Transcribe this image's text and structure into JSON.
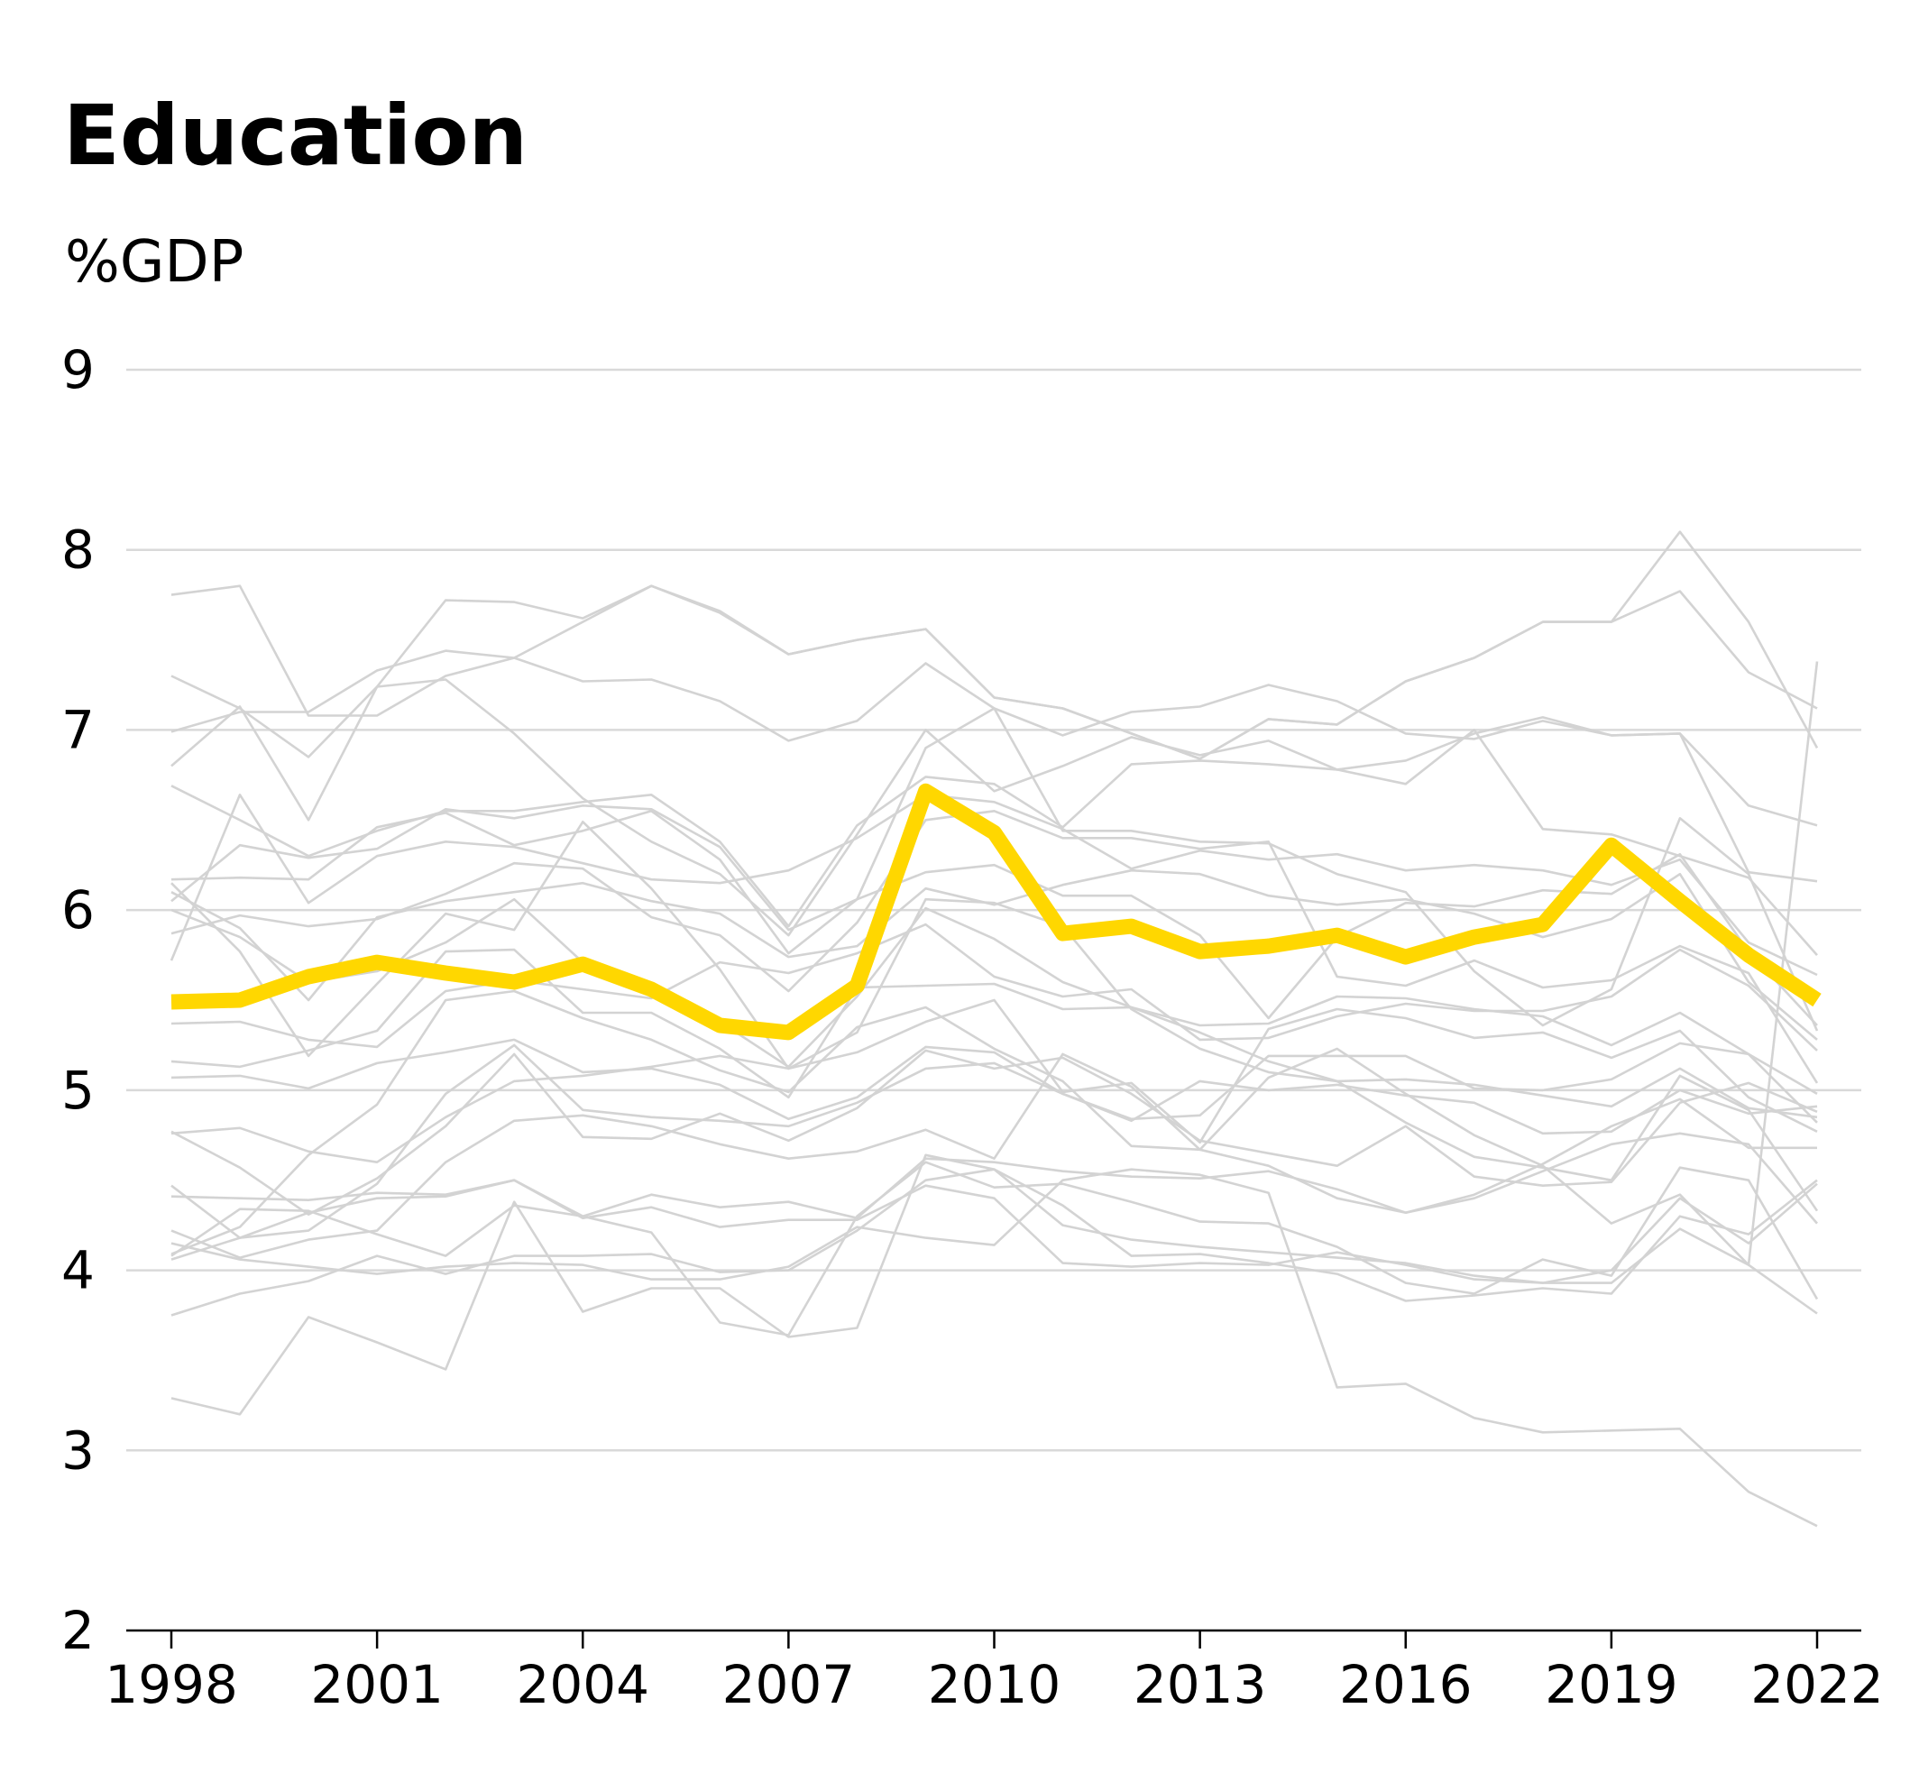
{
  "chart_data": {
    "type": "line",
    "title": "Education",
    "subtitle": "%GDP",
    "xlabel": "",
    "ylabel": "",
    "x": [
      1998,
      1999,
      2000,
      2001,
      2002,
      2003,
      2004,
      2005,
      2006,
      2007,
      2008,
      2009,
      2010,
      2011,
      2012,
      2013,
      2014,
      2015,
      2016,
      2017,
      2018,
      2019,
      2020,
      2021,
      2022
    ],
    "xticks": [
      "1998",
      "2001",
      "2004",
      "2007",
      "2010",
      "2013",
      "2016",
      "2019",
      "2022"
    ],
    "xtick_values": [
      1998,
      2001,
      2004,
      2007,
      2010,
      2013,
      2016,
      2019,
      2022
    ],
    "yticks": [
      "2",
      "3",
      "4",
      "5",
      "6",
      "7",
      "8",
      "9"
    ],
    "ylim": [
      2,
      9
    ],
    "xlim": [
      1998,
      2022
    ],
    "grid": true,
    "colors": {
      "highlight": "#FFD700",
      "background_lines": "#D3D3D3",
      "grid": "#D9D9D9",
      "axis": "#000000"
    },
    "highlight_series": {
      "values": [
        5.49,
        5.5,
        5.63,
        5.71,
        5.65,
        5.6,
        5.7,
        5.56,
        5.36,
        5.32,
        5.58,
        6.66,
        6.43,
        5.87,
        5.91,
        5.77,
        5.8,
        5.86,
        5.74,
        5.85,
        5.92,
        6.36,
        6.05,
        5.75,
        5.5
      ]
    },
    "background_series": [
      {
        "values": [
          7.75,
          7.8,
          7.08,
          7.08,
          7.3,
          7.4,
          7.6,
          7.8,
          7.66,
          7.42,
          7.5,
          7.56,
          7.18,
          7.12,
          6.98,
          6.84,
          7.06,
          7.03,
          7.27,
          7.4,
          7.6,
          7.6,
          7.77,
          7.32,
          7.12
        ]
      },
      {
        "values": [
          7.3,
          7.12,
          6.85,
          7.24,
          7.72,
          7.71,
          7.62,
          7.8,
          7.65,
          7.42,
          7.5,
          7.56,
          7.18,
          7.12,
          6.98,
          6.84,
          7.06,
          7.03,
          7.27,
          7.4,
          7.6,
          7.6,
          8.1,
          7.6,
          6.9
        ]
      },
      {
        "values": [
          6.99,
          7.1,
          7.1,
          7.33,
          7.44,
          7.4,
          7.27,
          7.28,
          7.16,
          6.94,
          7.05,
          7.37,
          7.12,
          6.97,
          7.1,
          7.13,
          7.25,
          7.16,
          6.98,
          6.95,
          7.05,
          6.97,
          6.98,
          6.58,
          6.47
        ]
      },
      {
        "values": [
          6.8,
          7.13,
          6.5,
          7.24,
          7.28,
          6.98,
          6.62,
          6.38,
          6.2,
          5.86,
          6.42,
          7.0,
          6.66,
          6.8,
          6.96,
          6.86,
          6.94,
          6.78,
          6.83,
          6.98,
          7.07,
          6.97,
          6.98,
          6.21,
          6.16
        ]
      },
      {
        "values": [
          6.69,
          6.5,
          6.3,
          6.44,
          6.55,
          6.55,
          6.6,
          6.64,
          6.38,
          5.91,
          6.47,
          6.74,
          6.7,
          6.46,
          6.81,
          6.83,
          6.81,
          6.78,
          6.7,
          7.0,
          6.45,
          6.42,
          6.3,
          6.18,
          5.75
        ]
      },
      {
        "values": [
          6.05,
          6.36,
          6.29,
          6.34,
          6.56,
          6.51,
          6.58,
          6.56,
          6.35,
          5.89,
          6.06,
          6.9,
          7.12,
          6.44,
          6.44,
          6.38,
          6.37,
          6.2,
          6.1,
          5.66,
          5.36,
          5.56,
          6.51,
          6.2,
          5.33
        ]
      },
      {
        "values": [
          5.72,
          6.64,
          6.04,
          6.3,
          6.38,
          6.35,
          6.26,
          6.17,
          6.15,
          6.22,
          6.4,
          6.64,
          6.6,
          6.45,
          6.23,
          6.33,
          6.28,
          6.31,
          6.22,
          6.25,
          6.22,
          6.14,
          6.28,
          5.82,
          5.64
        ]
      },
      {
        "values": [
          6.17,
          6.18,
          6.17,
          6.46,
          6.54,
          6.36,
          6.44,
          6.55,
          6.28,
          5.76,
          6.06,
          6.21,
          6.25,
          6.08,
          6.08,
          5.86,
          5.4,
          5.85,
          6.04,
          6.02,
          6.11,
          6.09,
          6.31,
          5.77,
          5.36
        ]
      },
      {
        "values": [
          6.1,
          5.9,
          5.5,
          5.96,
          6.05,
          6.1,
          6.15,
          6.05,
          5.98,
          5.74,
          5.8,
          6.12,
          6.03,
          6.14,
          6.22,
          6.2,
          6.08,
          6.03,
          6.06,
          5.98,
          5.85,
          5.95,
          6.2,
          5.6,
          5.28
        ]
      },
      {
        "values": [
          5.87,
          5.97,
          5.91,
          5.95,
          6.09,
          6.26,
          6.23,
          5.96,
          5.86,
          5.55,
          5.93,
          6.5,
          6.55,
          6.4,
          6.4,
          6.34,
          6.38,
          5.63,
          5.58,
          5.72,
          5.57,
          5.61,
          5.8,
          5.65,
          5.04
        ]
      },
      {
        "values": [
          6.15,
          5.77,
          5.19,
          5.59,
          5.98,
          5.89,
          6.49,
          6.12,
          5.67,
          5.12,
          5.32,
          6.06,
          6.04,
          5.91,
          5.45,
          5.23,
          5.1,
          5.05,
          5.06,
          5.03,
          4.97,
          4.91,
          5.12,
          4.9,
          4.85
        ]
      },
      {
        "values": [
          5.37,
          5.38,
          5.28,
          5.24,
          5.55,
          5.61,
          5.56,
          5.51,
          5.71,
          5.65,
          5.76,
          5.92,
          5.63,
          5.52,
          5.56,
          5.28,
          5.29,
          5.41,
          5.48,
          5.44,
          5.44,
          5.52,
          5.78,
          5.58,
          5.22
        ]
      },
      {
        "values": [
          5.16,
          5.13,
          5.22,
          5.33,
          5.77,
          5.78,
          5.43,
          5.43,
          5.23,
          4.96,
          5.57,
          5.58,
          5.59,
          5.45,
          5.46,
          5.36,
          5.37,
          5.52,
          5.51,
          5.45,
          5.41,
          5.25,
          5.43,
          5.2,
          4.82
        ]
      },
      {
        "values": [
          5.07,
          5.08,
          5.01,
          5.15,
          5.21,
          5.28,
          5.1,
          5.12,
          5.03,
          4.84,
          4.96,
          5.24,
          5.21,
          4.98,
          4.84,
          4.86,
          5.19,
          5.19,
          5.19,
          5.01,
          5.0,
          5.06,
          5.26,
          5.2,
          4.98
        ]
      },
      {
        "values": [
          4.76,
          4.79,
          4.66,
          4.6,
          4.85,
          5.05,
          5.08,
          5.13,
          5.19,
          5.12,
          5.21,
          5.38,
          5.5,
          4.99,
          5.04,
          4.71,
          5.34,
          5.45,
          5.4,
          5.29,
          5.32,
          5.18,
          5.33,
          4.96,
          4.77
        ]
      },
      {
        "values": [
          4.41,
          4.4,
          4.39,
          4.43,
          4.42,
          4.5,
          4.3,
          4.42,
          4.35,
          4.38,
          4.29,
          4.62,
          4.6,
          4.55,
          4.52,
          4.51,
          4.55,
          4.45,
          4.32,
          4.42,
          4.59,
          4.8,
          4.95,
          4.68,
          4.68
        ]
      },
      {
        "values": [
          4.77,
          4.57,
          4.31,
          4.51,
          4.8,
          5.2,
          4.74,
          4.73,
          4.87,
          4.72,
          4.9,
          5.22,
          5.12,
          5.18,
          4.98,
          4.72,
          4.65,
          4.58,
          4.8,
          4.52,
          4.47,
          4.49,
          4.93,
          5.04,
          4.88
        ]
      },
      {
        "values": [
          4.22,
          4.07,
          4.17,
          4.22,
          4.6,
          4.83,
          4.86,
          4.8,
          4.7,
          4.62,
          4.66,
          4.78,
          4.62,
          5.2,
          5.02,
          4.67,
          4.58,
          4.4,
          4.32,
          4.4,
          4.55,
          4.7,
          4.76,
          4.7,
          4.26
        ]
      },
      {
        "values": [
          4.06,
          4.18,
          4.32,
          4.4,
          4.41,
          4.5,
          4.29,
          4.35,
          4.24,
          4.28,
          4.28,
          4.47,
          4.4,
          4.04,
          4.02,
          4.04,
          4.03,
          4.1,
          4.03,
          3.95,
          3.93,
          4.0,
          4.4,
          4.15,
          4.48
        ]
      },
      {
        "values": [
          4.47,
          4.18,
          4.22,
          4.48,
          4.98,
          5.25,
          4.89,
          4.85,
          4.83,
          4.8,
          4.93,
          5.12,
          5.15,
          4.98,
          4.83,
          5.05,
          5.0,
          5.03,
          4.97,
          4.93,
          4.76,
          4.77,
          5.0,
          4.87,
          4.91
        ]
      },
      {
        "values": [
          4.15,
          4.06,
          4.02,
          3.98,
          4.02,
          4.04,
          4.03,
          3.95,
          3.95,
          4.02,
          4.24,
          4.18,
          4.14,
          4.5,
          4.56,
          4.53,
          4.43,
          3.35,
          3.37,
          3.18,
          3.1,
          3.11,
          3.12,
          2.77,
          2.58
        ]
      },
      {
        "values": [
          3.75,
          3.87,
          3.94,
          4.08,
          3.98,
          4.08,
          4.08,
          4.09,
          3.99,
          4.0,
          4.22,
          4.5,
          4.56,
          4.25,
          4.17,
          4.13,
          4.1,
          4.07,
          4.04,
          3.97,
          3.93,
          3.93,
          4.23,
          4.03,
          3.76
        ]
      },
      {
        "values": [
          4.09,
          4.24,
          4.64,
          4.92,
          5.5,
          5.55,
          5.4,
          5.28,
          5.11,
          4.99,
          5.35,
          5.46,
          5.23,
          5.05,
          4.69,
          4.67,
          5.07,
          5.23,
          4.98,
          4.75,
          4.58,
          4.26,
          4.42,
          4.03,
          7.38
        ]
      },
      {
        "values": [
          3.29,
          3.2,
          3.74,
          3.6,
          3.45,
          4.38,
          3.77,
          3.9,
          3.9,
          3.63,
          3.68,
          4.64,
          4.56,
          4.36,
          4.08,
          4.09,
          4.04,
          3.98,
          3.83,
          3.86,
          3.9,
          3.87,
          4.3,
          4.2,
          4.5
        ]
      },
      {
        "values": [
          4.08,
          4.34,
          4.33,
          4.2,
          4.08,
          4.36,
          4.3,
          4.21,
          3.71,
          3.64,
          4.3,
          4.6,
          4.46,
          4.48,
          4.38,
          4.27,
          4.26,
          4.13,
          3.93,
          3.87,
          4.06,
          3.97,
          4.57,
          4.5,
          3.84
        ]
      },
      {
        "values": [
          6.0,
          5.85,
          5.6,
          5.66,
          5.82,
          6.06,
          5.71,
          5.56,
          5.38,
          5.13,
          5.52,
          6.01,
          5.84,
          5.6,
          5.46,
          5.32,
          5.16,
          5.05,
          4.82,
          4.63,
          4.57,
          4.5,
          5.08,
          4.89,
          4.33
        ]
      }
    ]
  }
}
